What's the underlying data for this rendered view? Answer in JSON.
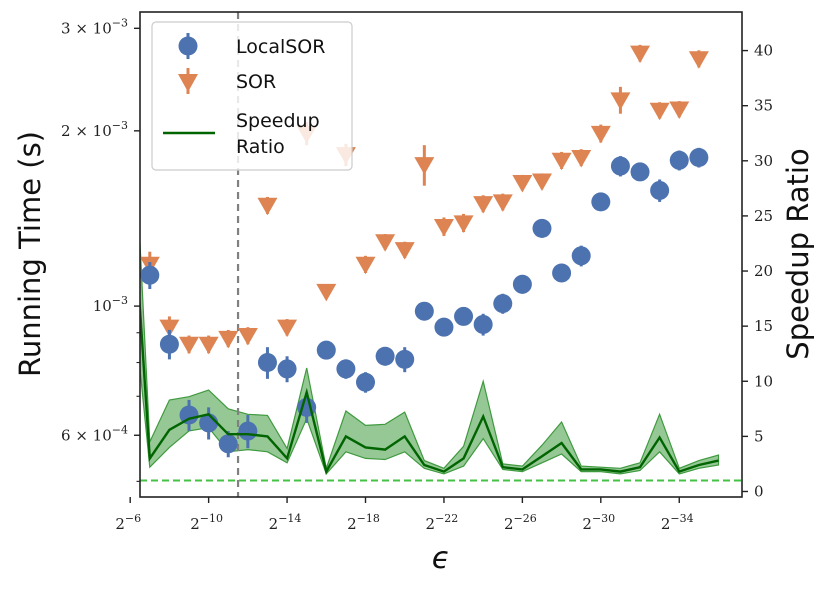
{
  "chart_data": {
    "type": "scatter",
    "xlabel": "ϵ",
    "ylabel_left": "Running Time (s)",
    "ylabel_right": "Speedup Ratio",
    "x_scale": "log2",
    "x_exponents": [
      -6,
      -7,
      -8,
      -9,
      -10,
      -11,
      -12,
      -13,
      -14,
      -15,
      -16,
      -17,
      -18,
      -19,
      -20,
      -21,
      -22,
      -23,
      -24,
      -25,
      -26,
      -27,
      -28,
      -29,
      -30,
      -31,
      -32,
      -33,
      -34,
      -35,
      -36
    ],
    "x_ticks": [
      {
        "exp": -6,
        "label": "2",
        "sup": "−6"
      },
      {
        "exp": -10,
        "label": "2",
        "sup": "−10"
      },
      {
        "exp": -14,
        "label": "2",
        "sup": "−14"
      },
      {
        "exp": -18,
        "label": "2",
        "sup": "−18"
      },
      {
        "exp": -22,
        "label": "2",
        "sup": "−22"
      },
      {
        "exp": -26,
        "label": "2",
        "sup": "−26"
      },
      {
        "exp": -30,
        "label": "2",
        "sup": "−30"
      },
      {
        "exp": -34,
        "label": "2",
        "sup": "−34"
      }
    ],
    "xlim_exp": [
      -6.5,
      -37.2
    ],
    "left_axis": {
      "scale": "log",
      "ylim": [
        0.00047,
        0.0032
      ],
      "ticks": [
        {
          "value": 0.0006,
          "label": "6 × 10",
          "sup": "−4"
        },
        {
          "value": 0.001,
          "label": "10",
          "sup": "−3"
        },
        {
          "value": 0.002,
          "label": "2 × 10",
          "sup": "−3"
        },
        {
          "value": 0.003,
          "label": "3 × 10",
          "sup": "−3"
        }
      ]
    },
    "right_axis": {
      "scale": "linear",
      "ylim": [
        -0.5,
        43.5
      ],
      "ticks": [
        0,
        5,
        10,
        15,
        20,
        25,
        30,
        35,
        40
      ]
    },
    "vline_exp": -11.5,
    "hline_ratio": 1,
    "colors": {
      "localsor": "#4c72b0",
      "sor": "#dd8452",
      "speedup": "#006400",
      "band": "#3f9a3f",
      "hline": "#44c244",
      "vline": "#808080"
    },
    "legend": {
      "placement": "top-left",
      "entries": [
        "LocalSOR",
        "SOR",
        "Speedup Ratio"
      ]
    },
    "series": [
      {
        "name": "LocalSOR",
        "marker": "circle",
        "y": [
          0.00205,
          0.00113,
          0.00086,
          0.00065,
          0.00063,
          0.00058,
          0.00061,
          0.0008,
          0.00078,
          0.00067,
          0.00084,
          0.00078,
          0.00074,
          0.00082,
          0.00081,
          0.00098,
          0.00092,
          0.00096,
          0.00093,
          0.00101,
          0.00109,
          0.00136,
          0.00114,
          0.00122,
          0.00151,
          0.00174,
          0.0017,
          0.00158,
          0.00178,
          0.0018
        ],
        "x_exp": [
          -6,
          -7,
          -8,
          -9,
          -10,
          -11,
          -12,
          -13,
          -14,
          -15,
          -16,
          -17,
          -18,
          -19,
          -20,
          -21,
          -22,
          -23,
          -24,
          -25,
          -26,
          -27,
          -28,
          -29,
          -30,
          -31,
          -32,
          -33,
          -34,
          -35
        ],
        "err": [
          0.00015,
          6e-05,
          5e-05,
          4e-05,
          4e-05,
          3e-05,
          4e-05,
          5e-05,
          4e-05,
          4e-05,
          3e-05,
          3e-05,
          3e-05,
          3e-05,
          4e-05,
          3e-05,
          3e-05,
          3e-05,
          4e-05,
          4e-05,
          4e-05,
          5e-05,
          4e-05,
          5e-05,
          5e-05,
          7e-05,
          6e-05,
          7e-05,
          7e-05,
          7e-05
        ]
      },
      {
        "name": "SOR",
        "marker": "triangle-down",
        "y": [
          0.0027,
          0.00118,
          0.00092,
          0.00086,
          0.00086,
          0.00088,
          0.00089,
          0.00149,
          0.00092,
          0.00198,
          0.00106,
          0.00182,
          0.00118,
          0.00129,
          0.00125,
          0.00175,
          0.00137,
          0.00139,
          0.0015,
          0.00151,
          0.00163,
          0.00164,
          0.00178,
          0.0018,
          0.00198,
          0.00226,
          0.00272,
          0.00217,
          0.00218,
          0.00266
        ],
        "x_exp": [
          -6,
          -7,
          -8,
          -9,
          -10,
          -11,
          -12,
          -13,
          -14,
          -15,
          -16,
          -17,
          -18,
          -19,
          -20,
          -21,
          -22,
          -23,
          -24,
          -25,
          -26,
          -27,
          -28,
          -29,
          -30,
          -31,
          -32,
          -33,
          -34,
          -35
        ],
        "err": [
          0.00025,
          6e-05,
          4e-05,
          3e-05,
          3e-05,
          3e-05,
          3e-05,
          5e-05,
          3e-05,
          9e-05,
          3e-05,
          8e-05,
          4e-05,
          4e-05,
          4e-05,
          0.00014,
          5e-05,
          5e-05,
          5e-05,
          5e-05,
          5e-05,
          5e-05,
          6e-05,
          6e-05,
          7e-05,
          0.00012,
          9e-05,
          7e-05,
          7e-05,
          9e-05
        ]
      },
      {
        "name": "Speedup Ratio",
        "marker": "line",
        "x_exp": [
          -6,
          -7,
          -8,
          -9,
          -10,
          -11,
          -12,
          -13,
          -14,
          -15,
          -16,
          -17,
          -18,
          -19,
          -20,
          -21,
          -22,
          -23,
          -24,
          -25,
          -26,
          -27,
          -28,
          -29,
          -30,
          -31,
          -32,
          -33,
          -34,
          -35,
          -36
        ],
        "y": [
          30.0,
          3.0,
          5.6,
          6.6,
          7.0,
          5.2,
          5.2,
          5.0,
          3.0,
          9.0,
          1.8,
          5.0,
          4.0,
          3.8,
          5.0,
          2.4,
          1.8,
          3.0,
          6.8,
          2.2,
          2.0,
          3.2,
          4.4,
          2.0,
          2.0,
          1.8,
          2.2,
          4.9,
          1.8,
          2.4,
          2.8
        ],
        "band_low": [
          20.0,
          2.2,
          4.0,
          5.5,
          5.8,
          3.6,
          3.8,
          3.6,
          2.6,
          6.6,
          1.6,
          3.6,
          3.0,
          2.9,
          3.6,
          2.1,
          1.6,
          2.3,
          4.8,
          2.0,
          1.8,
          2.6,
          3.4,
          1.8,
          1.8,
          1.6,
          1.9,
          3.6,
          1.6,
          2.1,
          2.4
        ],
        "band_high": [
          40.5,
          4.5,
          8.3,
          8.6,
          9.2,
          7.5,
          7.0,
          6.9,
          3.9,
          11.2,
          2.1,
          7.3,
          6.0,
          6.1,
          7.2,
          2.8,
          2.1,
          4.1,
          10.0,
          2.5,
          2.3,
          4.2,
          6.3,
          2.3,
          2.2,
          2.1,
          2.6,
          7.0,
          2.1,
          2.8,
          3.3
        ]
      }
    ]
  }
}
